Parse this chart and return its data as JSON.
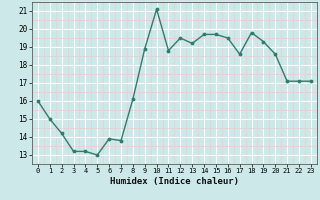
{
  "x": [
    0,
    1,
    2,
    3,
    4,
    5,
    6,
    7,
    8,
    9,
    10,
    11,
    12,
    13,
    14,
    15,
    16,
    17,
    18,
    19,
    20,
    21,
    22,
    23
  ],
  "y": [
    16,
    15,
    14.2,
    13.2,
    13.2,
    13.0,
    13.9,
    13.8,
    16.1,
    18.9,
    21.1,
    18.8,
    19.5,
    19.2,
    19.7,
    19.7,
    19.5,
    18.6,
    19.8,
    19.3,
    18.6,
    17.1,
    17.1,
    17.1
  ],
  "xlabel": "Humidex (Indice chaleur)",
  "ylim": [
    12.5,
    21.5
  ],
  "xlim": [
    -0.5,
    23.5
  ],
  "yticks": [
    13,
    14,
    15,
    16,
    17,
    18,
    19,
    20,
    21
  ],
  "xticks": [
    0,
    1,
    2,
    3,
    4,
    5,
    6,
    7,
    8,
    9,
    10,
    11,
    12,
    13,
    14,
    15,
    16,
    17,
    18,
    19,
    20,
    21,
    22,
    23
  ],
  "line_color": "#2e7d6e",
  "marker_color": "#2e7d6e",
  "bg_color": "#cce8e8",
  "grid_color": "#ffffff",
  "grid_minor_color": "#e8cece"
}
